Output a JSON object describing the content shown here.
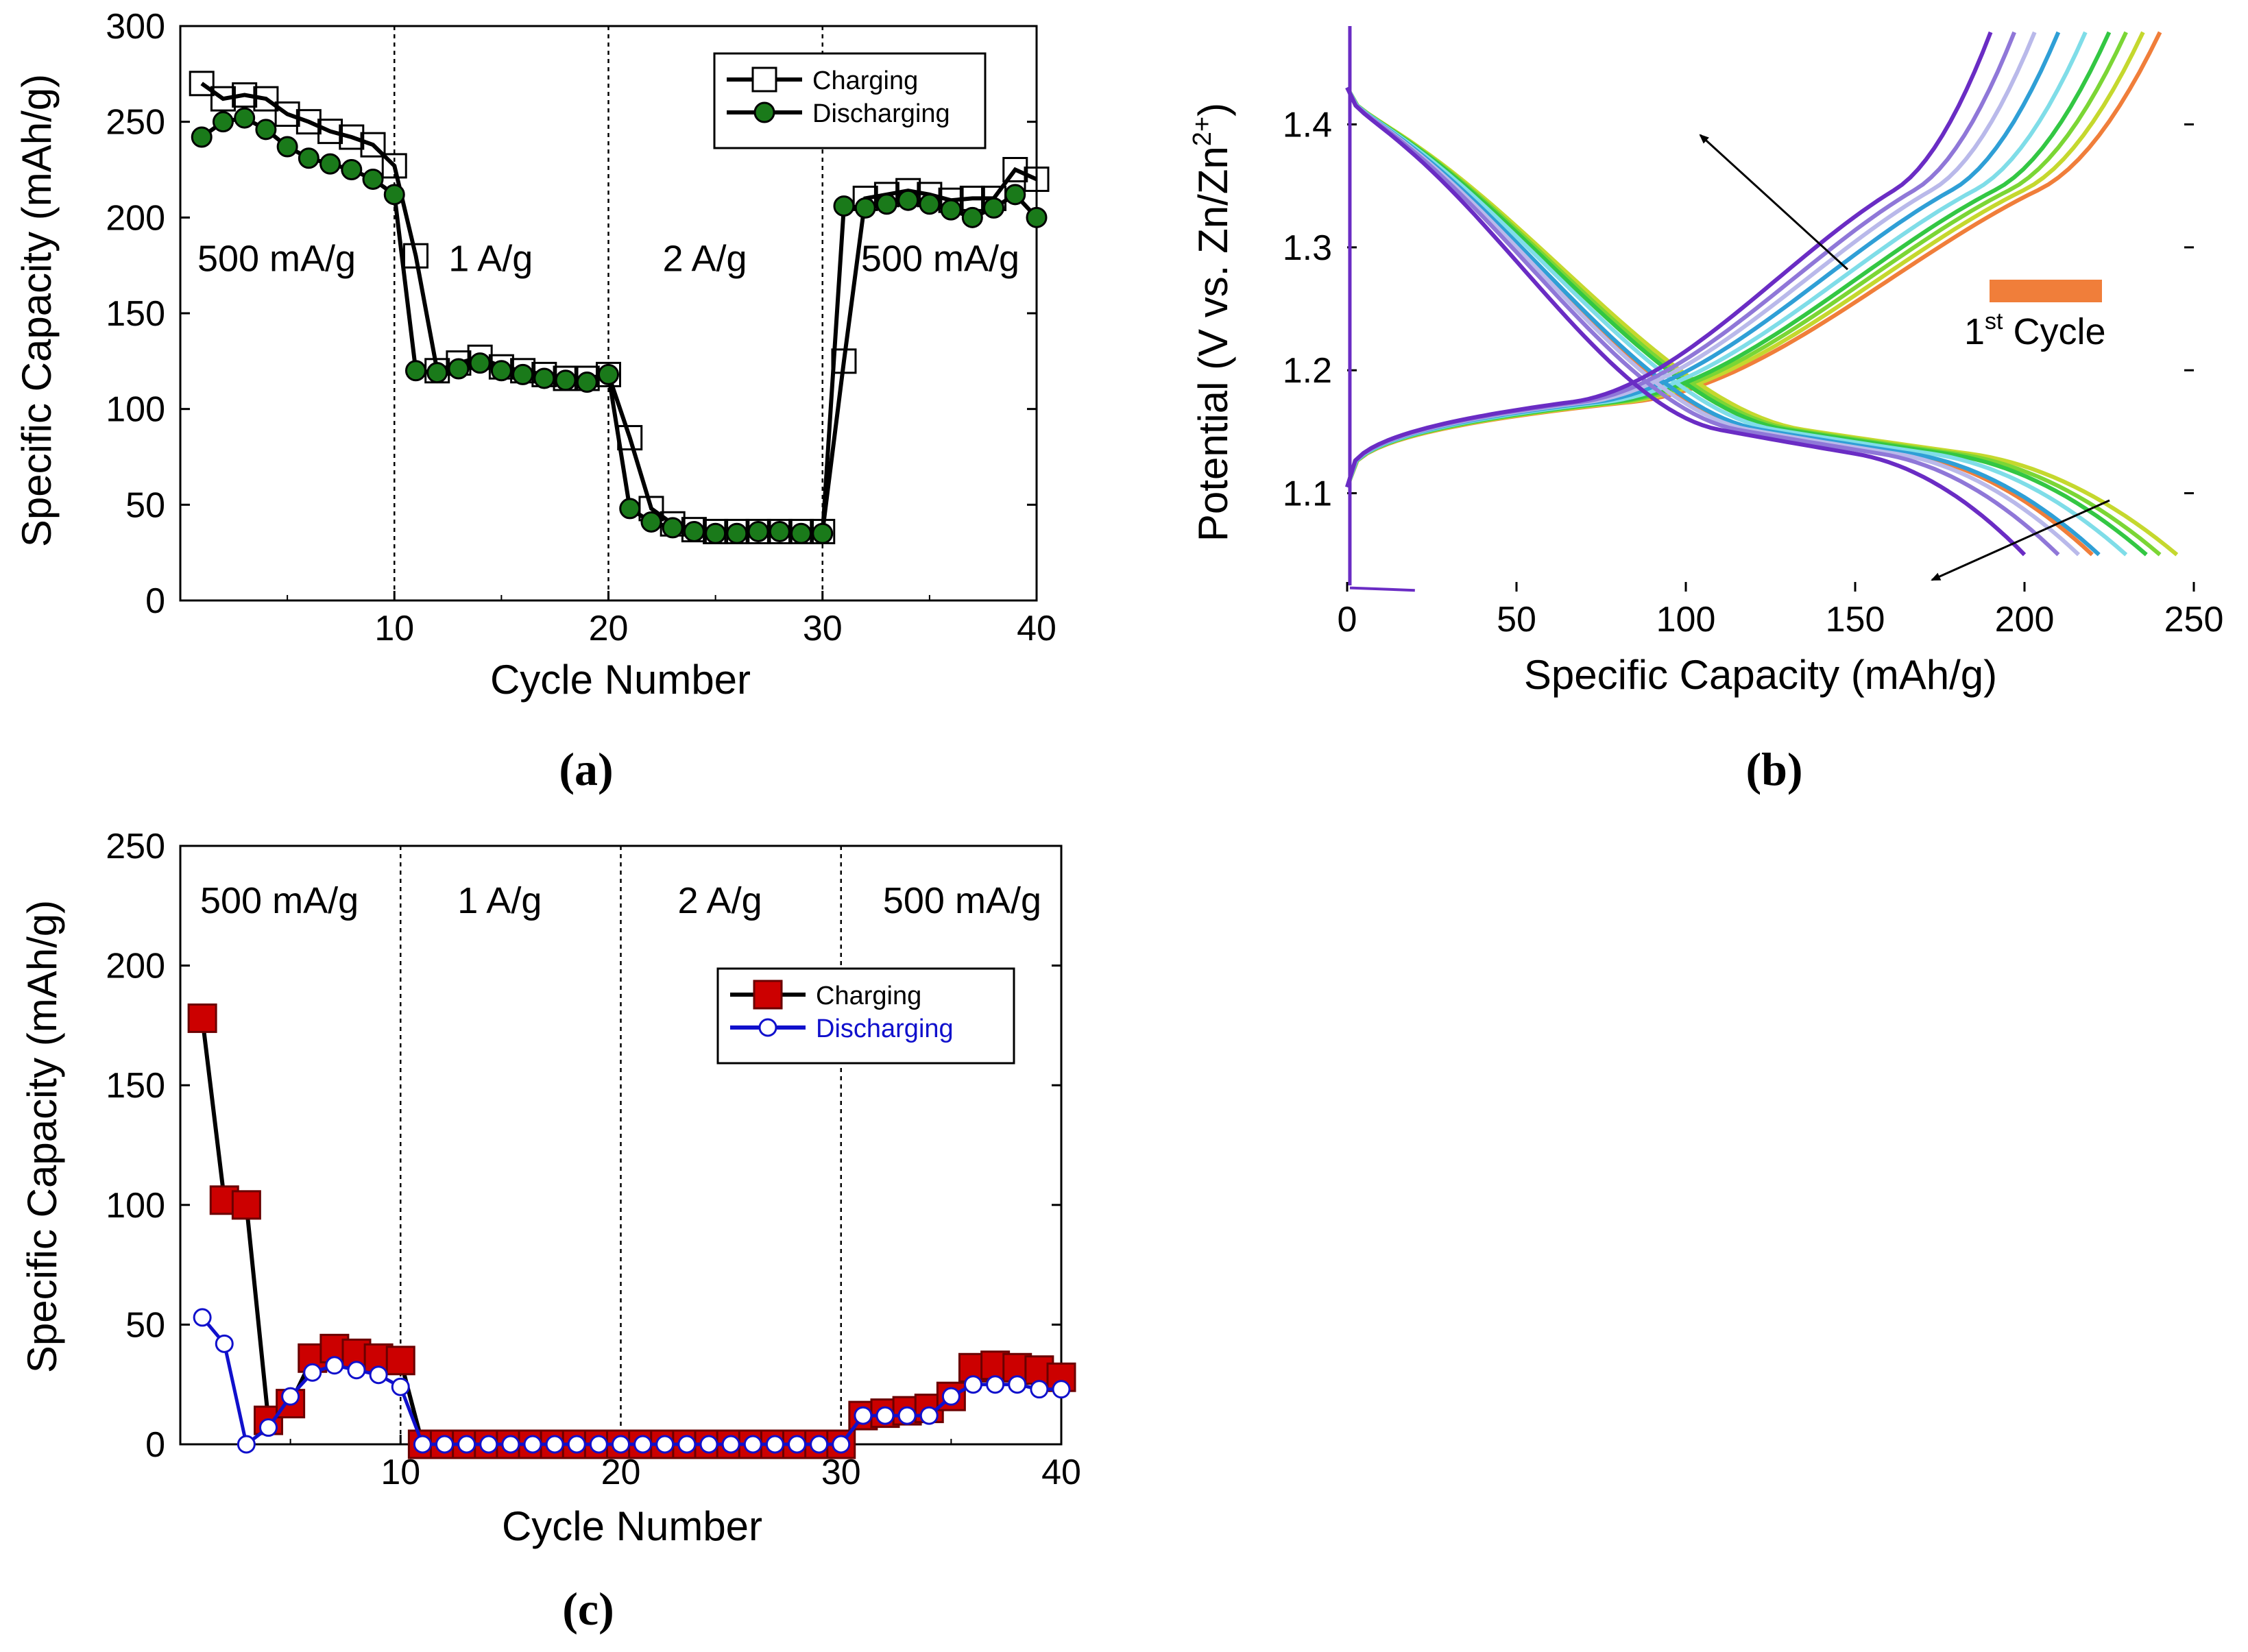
{
  "chart_data": [
    {
      "panel": "a",
      "caption": "(a)",
      "type": "line",
      "xlabel": "Cycle Number",
      "ylabel": "Specific Capacity (mAh/g)",
      "xlim": [
        0,
        40
      ],
      "ylim": [
        0,
        300
      ],
      "xticks": [
        "10",
        "20",
        "30",
        "40"
      ],
      "yticks": [
        "0",
        "50",
        "100",
        "150",
        "200",
        "250",
        "300"
      ],
      "regions": [
        {
          "label": "500 mA/g",
          "x": 4.5,
          "y": 172
        },
        {
          "label": "1 A/g",
          "x": 14.5,
          "y": 172
        },
        {
          "label": "2 A/g",
          "x": 24.5,
          "y": 172
        },
        {
          "label": "500 mA/g",
          "x": 35.5,
          "y": 172
        }
      ],
      "dividers": [
        10,
        20,
        30
      ],
      "legend": {
        "position": "top-right",
        "entries": [
          "Charging",
          "Discharging"
        ]
      },
      "series": [
        {
          "name": "Charging",
          "marker": "open-square",
          "color": "#000000",
          "x": [
            1,
            2,
            3,
            4,
            5,
            6,
            7,
            8,
            9,
            10,
            11,
            12,
            13,
            14,
            15,
            16,
            17,
            18,
            19,
            20,
            21,
            22,
            23,
            24,
            25,
            26,
            27,
            28,
            29,
            30,
            31,
            32,
            33,
            34,
            35,
            36,
            37,
            38,
            39,
            40
          ],
          "values": [
            270,
            262,
            264,
            262,
            254,
            250,
            245,
            242,
            238,
            227,
            180,
            120,
            124,
            127,
            122,
            120,
            118,
            116,
            116,
            118,
            85,
            48,
            40,
            37,
            36,
            36,
            36,
            36,
            36,
            36,
            125,
            210,
            212,
            214,
            212,
            209,
            210,
            210,
            225,
            220
          ]
        },
        {
          "name": "Discharging",
          "marker": "filled-circle",
          "color": "#1a7a1a",
          "x": [
            1,
            2,
            3,
            4,
            5,
            6,
            7,
            8,
            9,
            10,
            11,
            12,
            13,
            14,
            15,
            16,
            17,
            18,
            19,
            20,
            21,
            22,
            23,
            24,
            25,
            26,
            27,
            28,
            29,
            30,
            31,
            32,
            33,
            34,
            35,
            36,
            37,
            38,
            39,
            40
          ],
          "values": [
            242,
            250,
            252,
            246,
            237,
            231,
            228,
            225,
            220,
            212,
            120,
            119,
            121,
            124,
            120,
            118,
            116,
            115,
            114,
            118,
            48,
            41,
            38,
            36,
            35,
            35,
            36,
            36,
            35,
            35,
            206,
            205,
            207,
            209,
            207,
            204,
            200,
            205,
            212,
            200
          ]
        }
      ]
    },
    {
      "panel": "b",
      "caption": "(b)",
      "type": "line",
      "xlabel": "Specific Capacity (mAh/g)",
      "ylabel": "Potential (V vs. Zn/Zn2+)",
      "ylabel_main": "Potential (V vs. Zn/Zn",
      "ylabel_sup": "2+",
      "ylabel_end": ")",
      "xlim": [
        0,
        250
      ],
      "ylim": [
        1.02,
        1.48
      ],
      "xticks": [
        "0",
        "50",
        "100",
        "150",
        "200",
        "250"
      ],
      "yticks": [
        "1.1",
        "1.2",
        "1.3",
        "1.4"
      ],
      "annotation": {
        "text": "1",
        "sup": "st",
        "rest": " Cycle",
        "swatch_color": "#f07e3a"
      },
      "curves": [
        {
          "color": "#f07e3a",
          "charge_cap": 240,
          "discharge_cap": 220
        },
        {
          "color": "#c5d82e",
          "charge_cap": 235,
          "discharge_cap": 245
        },
        {
          "color": "#7bd635",
          "charge_cap": 230,
          "discharge_cap": 240
        },
        {
          "color": "#33c743",
          "charge_cap": 225,
          "discharge_cap": 236
        },
        {
          "color": "#7fdde8",
          "charge_cap": 218,
          "discharge_cap": 230
        },
        {
          "color": "#2f9fd6",
          "charge_cap": 210,
          "discharge_cap": 222
        },
        {
          "color": "#b9b9ea",
          "charge_cap": 203,
          "discharge_cap": 216
        },
        {
          "color": "#8f77d8",
          "charge_cap": 197,
          "discharge_cap": 210
        },
        {
          "color": "#6a2cc4",
          "charge_cap": 190,
          "discharge_cap": 200
        }
      ]
    },
    {
      "panel": "c",
      "caption": "(c)",
      "type": "line",
      "xlabel": "Cycle Number",
      "ylabel": "Specific Capacity (mAh/g)",
      "xlim": [
        0,
        40
      ],
      "ylim": [
        0,
        250
      ],
      "xticks": [
        "10",
        "20",
        "30",
        "40"
      ],
      "yticks": [
        "0",
        "50",
        "100",
        "150",
        "200",
        "250"
      ],
      "regions": [
        {
          "label": "500 mA/g",
          "x": 4.5,
          "y": 222
        },
        {
          "label": "1 A/g",
          "x": 14.5,
          "y": 222
        },
        {
          "label": "2 A/g",
          "x": 24.5,
          "y": 222
        },
        {
          "label": "500 mA/g",
          "x": 35.5,
          "y": 222
        }
      ],
      "dividers": [
        10,
        20,
        30
      ],
      "legend": {
        "position": "center-right",
        "entries": [
          "Charging",
          "Discharging"
        ]
      },
      "series": [
        {
          "name": "Charging",
          "marker": "filled-square",
          "color": "#cc0000",
          "x": [
            1,
            2,
            3,
            4,
            5,
            6,
            7,
            8,
            9,
            10,
            11,
            12,
            13,
            14,
            15,
            16,
            17,
            18,
            19,
            20,
            21,
            22,
            23,
            24,
            25,
            26,
            27,
            28,
            29,
            30,
            31,
            32,
            33,
            34,
            35,
            36,
            37,
            38,
            39,
            40
          ],
          "values": [
            178,
            102,
            100,
            10,
            17,
            36,
            40,
            38,
            36,
            35,
            0,
            0,
            0,
            0,
            0,
            0,
            0,
            0,
            0,
            0,
            0,
            0,
            0,
            0,
            0,
            0,
            0,
            0,
            0,
            0,
            12,
            13,
            14,
            15,
            20,
            32,
            33,
            32,
            31,
            28
          ]
        },
        {
          "name": "Discharging",
          "marker": "open-circle",
          "color": "#1010cc",
          "x": [
            1,
            2,
            3,
            4,
            5,
            6,
            7,
            8,
            9,
            10,
            11,
            12,
            13,
            14,
            15,
            16,
            17,
            18,
            19,
            20,
            21,
            22,
            23,
            24,
            25,
            26,
            27,
            28,
            29,
            30,
            31,
            32,
            33,
            34,
            35,
            36,
            37,
            38,
            39,
            40
          ],
          "values": [
            53,
            42,
            0,
            7,
            20,
            30,
            33,
            31,
            29,
            24,
            0,
            0,
            0,
            0,
            0,
            0,
            0,
            0,
            0,
            0,
            0,
            0,
            0,
            0,
            0,
            0,
            0,
            0,
            0,
            0,
            12,
            12,
            12,
            12,
            20,
            25,
            25,
            25,
            23,
            23
          ]
        }
      ]
    }
  ]
}
